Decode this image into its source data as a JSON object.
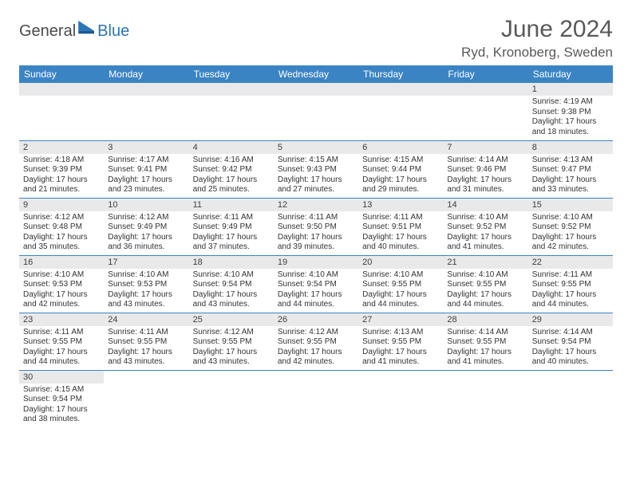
{
  "brand": {
    "text1": "General",
    "text2": "Blue"
  },
  "title": "June 2024",
  "location": "Ryd, Kronoberg, Sweden",
  "header_bg": "#3b84c4",
  "daynum_bg": "#e9e9e9",
  "border_color": "#3b84c4",
  "weekdays": [
    "Sunday",
    "Monday",
    "Tuesday",
    "Wednesday",
    "Thursday",
    "Friday",
    "Saturday"
  ],
  "weeks": [
    [
      null,
      null,
      null,
      null,
      null,
      null,
      {
        "n": "1",
        "sr": "4:19 AM",
        "ss": "9:38 PM",
        "dl": "17 hours and 18 minutes."
      }
    ],
    [
      {
        "n": "2",
        "sr": "4:18 AM",
        "ss": "9:39 PM",
        "dl": "17 hours and 21 minutes."
      },
      {
        "n": "3",
        "sr": "4:17 AM",
        "ss": "9:41 PM",
        "dl": "17 hours and 23 minutes."
      },
      {
        "n": "4",
        "sr": "4:16 AM",
        "ss": "9:42 PM",
        "dl": "17 hours and 25 minutes."
      },
      {
        "n": "5",
        "sr": "4:15 AM",
        "ss": "9:43 PM",
        "dl": "17 hours and 27 minutes."
      },
      {
        "n": "6",
        "sr": "4:15 AM",
        "ss": "9:44 PM",
        "dl": "17 hours and 29 minutes."
      },
      {
        "n": "7",
        "sr": "4:14 AM",
        "ss": "9:46 PM",
        "dl": "17 hours and 31 minutes."
      },
      {
        "n": "8",
        "sr": "4:13 AM",
        "ss": "9:47 PM",
        "dl": "17 hours and 33 minutes."
      }
    ],
    [
      {
        "n": "9",
        "sr": "4:12 AM",
        "ss": "9:48 PM",
        "dl": "17 hours and 35 minutes."
      },
      {
        "n": "10",
        "sr": "4:12 AM",
        "ss": "9:49 PM",
        "dl": "17 hours and 36 minutes."
      },
      {
        "n": "11",
        "sr": "4:11 AM",
        "ss": "9:49 PM",
        "dl": "17 hours and 37 minutes."
      },
      {
        "n": "12",
        "sr": "4:11 AM",
        "ss": "9:50 PM",
        "dl": "17 hours and 39 minutes."
      },
      {
        "n": "13",
        "sr": "4:11 AM",
        "ss": "9:51 PM",
        "dl": "17 hours and 40 minutes."
      },
      {
        "n": "14",
        "sr": "4:10 AM",
        "ss": "9:52 PM",
        "dl": "17 hours and 41 minutes."
      },
      {
        "n": "15",
        "sr": "4:10 AM",
        "ss": "9:52 PM",
        "dl": "17 hours and 42 minutes."
      }
    ],
    [
      {
        "n": "16",
        "sr": "4:10 AM",
        "ss": "9:53 PM",
        "dl": "17 hours and 42 minutes."
      },
      {
        "n": "17",
        "sr": "4:10 AM",
        "ss": "9:53 PM",
        "dl": "17 hours and 43 minutes."
      },
      {
        "n": "18",
        "sr": "4:10 AM",
        "ss": "9:54 PM",
        "dl": "17 hours and 43 minutes."
      },
      {
        "n": "19",
        "sr": "4:10 AM",
        "ss": "9:54 PM",
        "dl": "17 hours and 44 minutes."
      },
      {
        "n": "20",
        "sr": "4:10 AM",
        "ss": "9:55 PM",
        "dl": "17 hours and 44 minutes."
      },
      {
        "n": "21",
        "sr": "4:10 AM",
        "ss": "9:55 PM",
        "dl": "17 hours and 44 minutes."
      },
      {
        "n": "22",
        "sr": "4:11 AM",
        "ss": "9:55 PM",
        "dl": "17 hours and 44 minutes."
      }
    ],
    [
      {
        "n": "23",
        "sr": "4:11 AM",
        "ss": "9:55 PM",
        "dl": "17 hours and 44 minutes."
      },
      {
        "n": "24",
        "sr": "4:11 AM",
        "ss": "9:55 PM",
        "dl": "17 hours and 43 minutes."
      },
      {
        "n": "25",
        "sr": "4:12 AM",
        "ss": "9:55 PM",
        "dl": "17 hours and 43 minutes."
      },
      {
        "n": "26",
        "sr": "4:12 AM",
        "ss": "9:55 PM",
        "dl": "17 hours and 42 minutes."
      },
      {
        "n": "27",
        "sr": "4:13 AM",
        "ss": "9:55 PM",
        "dl": "17 hours and 41 minutes."
      },
      {
        "n": "28",
        "sr": "4:14 AM",
        "ss": "9:55 PM",
        "dl": "17 hours and 41 minutes."
      },
      {
        "n": "29",
        "sr": "4:14 AM",
        "ss": "9:54 PM",
        "dl": "17 hours and 40 minutes."
      }
    ],
    [
      {
        "n": "30",
        "sr": "4:15 AM",
        "ss": "9:54 PM",
        "dl": "17 hours and 38 minutes."
      },
      null,
      null,
      null,
      null,
      null,
      null
    ]
  ],
  "labels": {
    "sunrise": "Sunrise:",
    "sunset": "Sunset:",
    "daylight": "Daylight:"
  }
}
